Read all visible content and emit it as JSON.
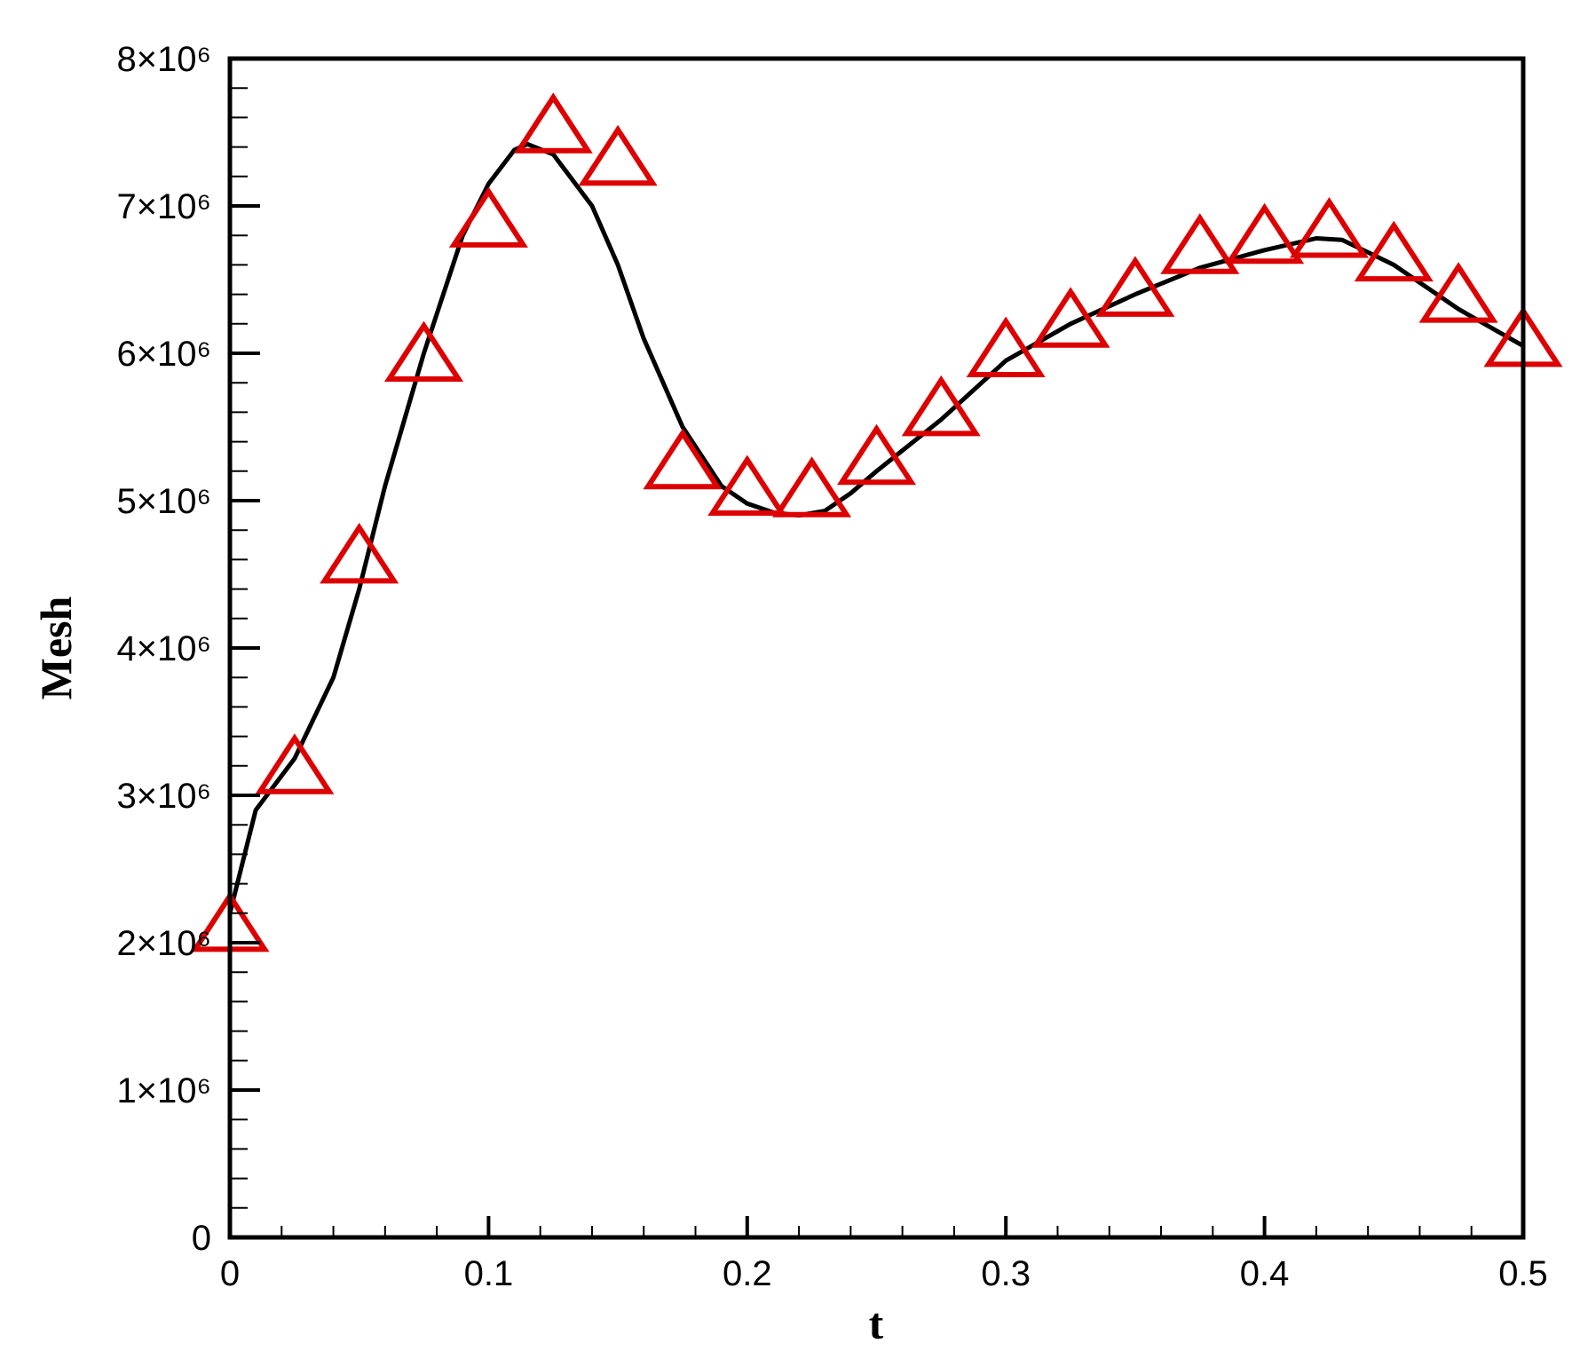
{
  "chart_data": {
    "type": "line",
    "xlabel": "t",
    "ylabel": "Mesh",
    "xlim": [
      0,
      0.5
    ],
    "ylim": [
      0,
      8000000
    ],
    "xticks": [
      0,
      0.1,
      0.2,
      0.3,
      0.4,
      0.5
    ],
    "yticks": [
      0,
      {
        "value": 1000000,
        "label": "1×10⁶"
      },
      {
        "value": 2000000,
        "label": "2×10⁶"
      },
      {
        "value": 3000000,
        "label": "3×10⁶"
      },
      {
        "value": 4000000,
        "label": "4×10⁶"
      },
      {
        "value": 5000000,
        "label": "5×10⁶"
      },
      {
        "value": 6000000,
        "label": "6×10⁶"
      },
      {
        "value": 7000000,
        "label": "7×10⁶"
      },
      {
        "value": 8000000,
        "label": "8×10⁶"
      }
    ],
    "xminorticks": [
      0.02,
      0.04,
      0.06,
      0.08,
      0.12,
      0.14,
      0.16,
      0.18,
      0.22,
      0.24,
      0.26,
      0.28,
      0.32,
      0.34,
      0.36,
      0.38,
      0.42,
      0.44,
      0.46,
      0.48
    ],
    "yminorticks": [
      200000,
      400000,
      600000,
      800000,
      1200000,
      1400000,
      1600000,
      1800000,
      2200000,
      2400000,
      2600000,
      2800000,
      3200000,
      3400000,
      3600000,
      3800000,
      4200000,
      4400000,
      4600000,
      4800000,
      5200000,
      5400000,
      5600000,
      5800000,
      6200000,
      6400000,
      6600000,
      6800000,
      7200000,
      7400000,
      7600000,
      7800000
    ],
    "series": [
      {
        "mode": "line",
        "color": "#000000",
        "x": [
          0,
          0.01,
          0.025,
          0.04,
          0.05,
          0.06,
          0.075,
          0.09,
          0.1,
          0.11,
          0.115,
          0.125,
          0.14,
          0.15,
          0.16,
          0.175,
          0.19,
          0.2,
          0.21,
          0.22,
          0.23,
          0.24,
          0.25,
          0.275,
          0.3,
          0.325,
          0.35,
          0.375,
          0.4,
          0.42,
          0.43,
          0.45,
          0.475,
          0.5
        ],
        "values": [
          2200000,
          2900000,
          3250000,
          3800000,
          4400000,
          5100000,
          6000000,
          6800000,
          7150000,
          7380000,
          7420000,
          7350000,
          7000000,
          6600000,
          6100000,
          5500000,
          5100000,
          4980000,
          4920000,
          4900000,
          4930000,
          5050000,
          5200000,
          5550000,
          5950000,
          6200000,
          6400000,
          6580000,
          6700000,
          6780000,
          6770000,
          6600000,
          6300000,
          6050000
        ]
      },
      {
        "mode": "triangle",
        "color": "#dd0000",
        "x": [
          0,
          0.025,
          0.05,
          0.075,
          0.1,
          0.125,
          0.15,
          0.175,
          0.2,
          0.225,
          0.25,
          0.275,
          0.3,
          0.325,
          0.35,
          0.375,
          0.4,
          0.425,
          0.45,
          0.475,
          0.5
        ],
        "values": [
          2100000,
          3170000,
          4600000,
          5970000,
          6880000,
          7520000,
          7300000,
          5240000,
          5060000,
          5050000,
          5270000,
          5600000,
          6000000,
          6200000,
          6410000,
          6700000,
          6770000,
          6810000,
          6650000,
          6370000,
          6070000
        ]
      }
    ]
  }
}
